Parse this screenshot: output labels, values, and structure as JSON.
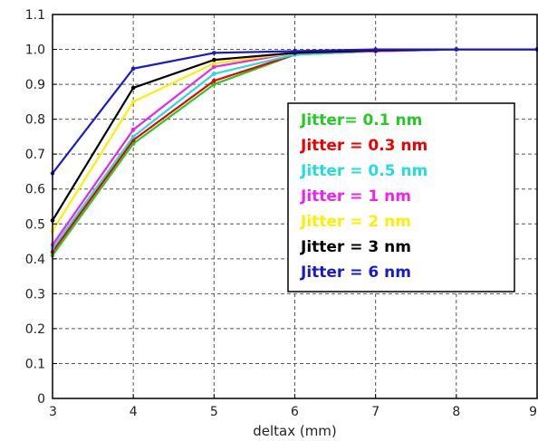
{
  "chart_data": {
    "type": "line",
    "title": "",
    "xlabel": "deltax (mm)",
    "ylabel": "",
    "x": [
      3,
      4,
      5,
      6,
      7,
      8,
      9
    ],
    "xlim": [
      3,
      9
    ],
    "ylim": [
      0,
      1.1
    ],
    "xticks": [
      "3",
      "4",
      "5",
      "6",
      "7",
      "8",
      "9"
    ],
    "yticks": [
      "0",
      "0.1",
      "0.2",
      "0.3",
      "0.4",
      "0.5",
      "0.6",
      "0.7",
      "0.8",
      "0.9",
      "1.0",
      "1.1"
    ],
    "grid": true,
    "legend_position": "center-right",
    "series": [
      {
        "name": "Jitter= 0.1 nm",
        "color": "#22cc22",
        "values": [
          0.41,
          0.73,
          0.9,
          0.985,
          0.995,
          1.0,
          1.0
        ]
      },
      {
        "name": "Jitter = 0.3 nm",
        "color": "#ee0000",
        "values": [
          0.42,
          0.74,
          0.91,
          0.985,
          0.995,
          1.0,
          1.0
        ]
      },
      {
        "name": "Jitter = 0.5 nm",
        "color": "#22dddd",
        "values": [
          0.43,
          0.75,
          0.93,
          0.985,
          0.995,
          1.0,
          1.0
        ]
      },
      {
        "name": "Jitter = 1 nm",
        "color": "#ee22ee",
        "values": [
          0.44,
          0.77,
          0.95,
          0.99,
          0.995,
          1.0,
          1.0
        ]
      },
      {
        "name": "Jitter = 2 nm",
        "color": "#ffee00",
        "values": [
          0.48,
          0.85,
          0.96,
          0.99,
          0.997,
          1.0,
          1.0
        ]
      },
      {
        "name": "Jitter = 3 nm",
        "color": "#000000",
        "values": [
          0.51,
          0.89,
          0.97,
          0.99,
          0.997,
          1.0,
          1.0
        ]
      },
      {
        "name": "Jitter = 6 nm",
        "color": "#1a1acc",
        "values": [
          0.645,
          0.945,
          0.99,
          0.995,
          1.0,
          1.0,
          1.0
        ]
      }
    ]
  }
}
